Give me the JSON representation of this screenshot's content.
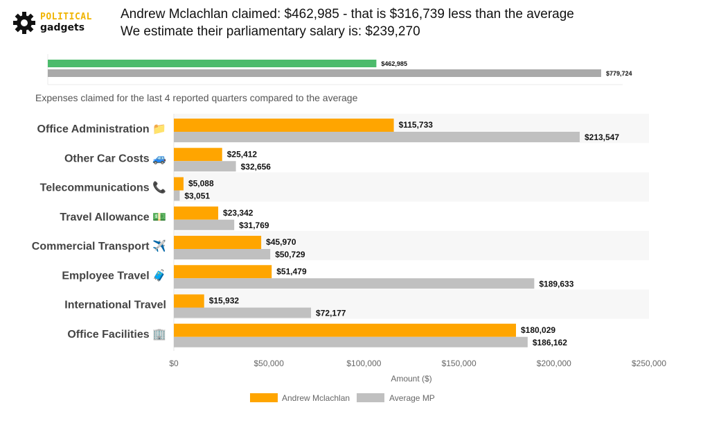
{
  "logo": {
    "line1": "POLITICAL",
    "line2": "gadgets",
    "icon": "gear-icon"
  },
  "headline": {
    "line1": "Andrew Mclachlan claimed: $462,985 - that is $316,739 less than the average",
    "line2": "We estimate their parliamentary salary is: $239,270"
  },
  "subtitle": "Expenses claimed for the last 4 reported quarters compared to the average",
  "colors": {
    "mp": "#ffa500",
    "average": "#c0c0c0",
    "total_mp": "#4cbb6c",
    "total_avg": "#a9a9a9"
  },
  "total_chart": {
    "type": "bar",
    "series": [
      {
        "name": "Andrew Mclachlan",
        "value": 462985,
        "label": "$462,985"
      },
      {
        "name": "Average MP",
        "value": 779724,
        "label": "$779,724"
      }
    ],
    "xlim": [
      0,
      810000
    ]
  },
  "chart_data": {
    "type": "bar",
    "orientation": "horizontal",
    "categories": [
      {
        "label": "Office Administration",
        "icon": "📁"
      },
      {
        "label": "Other Car Costs",
        "icon": "🚙"
      },
      {
        "label": "Telecommunications",
        "icon": "📞"
      },
      {
        "label": "Travel Allowance",
        "icon": "💵"
      },
      {
        "label": "Commercial Transport",
        "icon": "✈️"
      },
      {
        "label": "Employee Travel",
        "icon": "🧳"
      },
      {
        "label": "International Travel",
        "icon": ""
      },
      {
        "label": "Office Facilities",
        "icon": "🏢"
      }
    ],
    "series": [
      {
        "name": "Andrew Mclachlan",
        "values": [
          115733,
          25412,
          5088,
          23342,
          45970,
          51479,
          15932,
          180029
        ],
        "labels": [
          "$115,733",
          "$25,412",
          "$5,088",
          "$23,342",
          "$45,970",
          "$51,479",
          "$15,932",
          "$180,029"
        ]
      },
      {
        "name": "Average MP",
        "values": [
          213547,
          32656,
          3051,
          31769,
          50729,
          189633,
          72177,
          186162
        ],
        "labels": [
          "$213,547",
          "$32,656",
          "$3,051",
          "$31,769",
          "$50,729",
          "$189,633",
          "$72,177",
          "$186,162"
        ]
      }
    ],
    "xlabel": "Amount ($)",
    "xlim": [
      0,
      250000
    ],
    "xticks": [
      {
        "value": 0,
        "label": "$0"
      },
      {
        "value": 50000,
        "label": "$50,000"
      },
      {
        "value": 100000,
        "label": "$100,000"
      },
      {
        "value": 150000,
        "label": "$150,000"
      },
      {
        "value": 200000,
        "label": "$200,000"
      },
      {
        "value": 250000,
        "label": "$250,000"
      }
    ],
    "legend": "bottom"
  }
}
